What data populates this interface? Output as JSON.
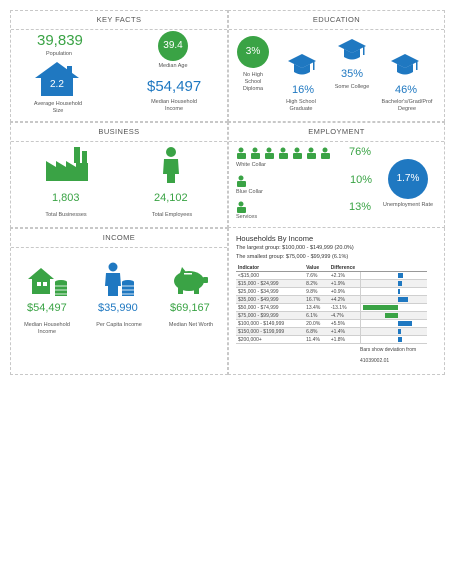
{
  "key_facts": {
    "title": "KEY FACTS",
    "population": "39,839",
    "population_label": "Population",
    "median_age": "39.4",
    "median_age_label": "Median Age",
    "household_size": "2.2",
    "household_size_label": "Average Household Size",
    "median_income": "$54,497",
    "median_income_label": "Median Household Income"
  },
  "education": {
    "title": "EDUCATION",
    "no_hs": "3%",
    "no_hs_label": "No High School Diploma",
    "hs": "16%",
    "hs_label": "High School Graduate",
    "college": "35%",
    "college_label": "Some College",
    "bachelor": "46%",
    "bachelor_label": "Bachelor's/Grad/Prof Degree"
  },
  "business": {
    "title": "BUSINESS",
    "businesses": "1,803",
    "businesses_label": "Total Businesses",
    "employees": "24,102",
    "employees_label": "Total Employees"
  },
  "employment": {
    "title": "EMPLOYMENT",
    "white_collar": "76%",
    "white_collar_label": "White Collar",
    "blue_collar": "10%",
    "blue_collar_label": "Blue Collar",
    "services": "13%",
    "services_label": "Services",
    "unemployment": "1.7%",
    "unemployment_label": "Unemployment Rate"
  },
  "income": {
    "title": "INCOME",
    "median_household": "$54,497",
    "median_household_label": "Median Household Income",
    "per_capita": "$35,990",
    "per_capita_label": "Per Capita Income",
    "net_worth": "$69,167",
    "net_worth_label": "Median Net Worth"
  },
  "households": {
    "title": "Households By Income",
    "largest": "The largest group: $100,000 - $149,999 (20.0%)",
    "smallest": "The smallest group: $75,000 - $99,999 (6.1%)",
    "headers": [
      "Indicator",
      "Value",
      "Difference"
    ],
    "rows": [
      {
        "indicator": "<$15,000",
        "value": "7.6%",
        "difference": "+2.1%",
        "diff": 2.1
      },
      {
        "indicator": "$15,000 - $24,999",
        "value": "8.2%",
        "difference": "+1.9%",
        "diff": 1.9
      },
      {
        "indicator": "$25,000 - $34,999",
        "value": "9.8%",
        "difference": "+0.9%",
        "diff": 0.9
      },
      {
        "indicator": "$35,000 - $49,999",
        "value": "16.7%",
        "difference": "+4.2%",
        "diff": 4.2
      },
      {
        "indicator": "$50,000 - $74,999",
        "value": "13.4%",
        "difference": "-13.1%",
        "diff": -13.1
      },
      {
        "indicator": "$75,000 - $99,999",
        "value": "6.1%",
        "difference": "-4.7%",
        "diff": -4.7
      },
      {
        "indicator": "$100,000 - $149,999",
        "value": "20.0%",
        "difference": "+5.5%",
        "diff": 5.5
      },
      {
        "indicator": "$150,000 - $199,999",
        "value": "6.8%",
        "difference": "+1.4%",
        "diff": 1.4
      },
      {
        "indicator": "$200,000+",
        "value": "11.4%",
        "difference": "+1.8%",
        "diff": 1.8
      }
    ],
    "note": "Bars show deviation from",
    "note2": "41039002.01"
  },
  "colors": {
    "green": "#3aa345",
    "blue": "#1f78c1"
  }
}
